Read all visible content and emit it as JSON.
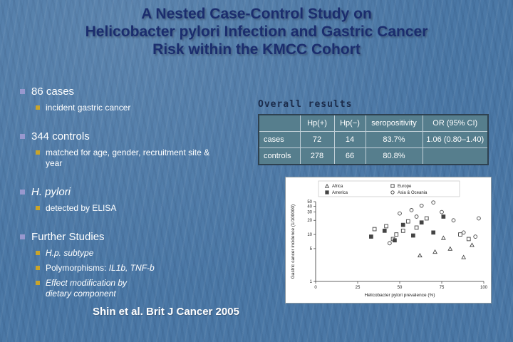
{
  "title": {
    "line1": "A Nested Case-Control Study on",
    "line2": "Helicobacter pylori Infection and Gastric Cancer",
    "line3": "Risk within the KMCC Cohort"
  },
  "bullets": [
    {
      "label": "86 cases",
      "subs": [
        {
          "text": "incident gastric cancer"
        }
      ]
    },
    {
      "label": "344 controls",
      "subs": [
        {
          "text": "matched for age, gender, recruitment site & year"
        }
      ]
    },
    {
      "label": "H. pylori",
      "italic": true,
      "subs": [
        {
          "text": "detected by ELISA"
        }
      ]
    },
    {
      "label": "Further Studies",
      "subs": [
        {
          "text": "H.p. subtype",
          "italic": true
        },
        {
          "prefix": "Polymorphisms: ",
          "text": "IL1b, TNF-b",
          "italic": true
        },
        {
          "line1": "Effect modification by",
          "line2": "dietary component",
          "italic": true
        }
      ]
    }
  ],
  "citation": "Shin et al. Brit J Cancer 2005",
  "results": {
    "heading": "Overall results",
    "headers": [
      "",
      "Hp(+)",
      "Hp(−)",
      "seropositivity",
      "OR (95% CI)"
    ],
    "rows": [
      {
        "label": "cases",
        "cells": [
          "72",
          "14",
          "83.7%",
          "1.06 (0.80–1.40)"
        ]
      },
      {
        "label": "controls",
        "cells": [
          "278",
          "66",
          "80.8%",
          ""
        ]
      }
    ]
  },
  "chart_data": {
    "type": "scatter",
    "title": "",
    "xlabel": "Helicobacter pylori prevalence (%)",
    "ylabel": "Gastric cancer incidence (1/100000)",
    "xlim": [
      0,
      100
    ],
    "ylim": [
      1,
      50
    ],
    "yscale": "log",
    "xticks": [
      0,
      25,
      50,
      75,
      100
    ],
    "yticks": [
      1,
      5,
      10,
      20,
      30,
      40,
      50
    ],
    "legend_position": "top",
    "series": [
      {
        "name": "Africa",
        "marker": "triangle-open",
        "points": [
          [
            62,
            3.6
          ],
          [
            71,
            4.3
          ],
          [
            80,
            5.0
          ],
          [
            88,
            3.3
          ],
          [
            93,
            6.0
          ],
          [
            76,
            8.5
          ]
        ]
      },
      {
        "name": "America",
        "marker": "square-filled",
        "points": [
          [
            33,
            9
          ],
          [
            41,
            12
          ],
          [
            52,
            16
          ],
          [
            63,
            18
          ],
          [
            70,
            11
          ],
          [
            76,
            24
          ],
          [
            58,
            9.5
          ],
          [
            47,
            7.5
          ]
        ]
      },
      {
        "name": "Europe",
        "marker": "square-open",
        "points": [
          [
            35,
            13
          ],
          [
            42,
            15
          ],
          [
            48,
            10
          ],
          [
            55,
            19
          ],
          [
            60,
            14
          ],
          [
            66,
            22
          ],
          [
            46,
            8
          ],
          [
            52,
            12
          ],
          [
            86,
            10
          ],
          [
            91,
            8
          ]
        ]
      },
      {
        "name": "Asia & Oceania",
        "marker": "circle-open",
        "points": [
          [
            50,
            28
          ],
          [
            57,
            33
          ],
          [
            63,
            41
          ],
          [
            70,
            48
          ],
          [
            75,
            30
          ],
          [
            82,
            20
          ],
          [
            88,
            11
          ],
          [
            95,
            9
          ],
          [
            60,
            24
          ],
          [
            44,
            6.5
          ],
          [
            97,
            22
          ]
        ]
      }
    ]
  },
  "colors": {
    "background": "#4b78a6",
    "title_text": "#1b2d6e",
    "body_text": "#ffffff",
    "bullet_level1_square": "#9898ce",
    "bullet_level2_square": "#c8a42c",
    "table_cell_bg": "#567e8d",
    "chart_bg": "#ffffff"
  }
}
